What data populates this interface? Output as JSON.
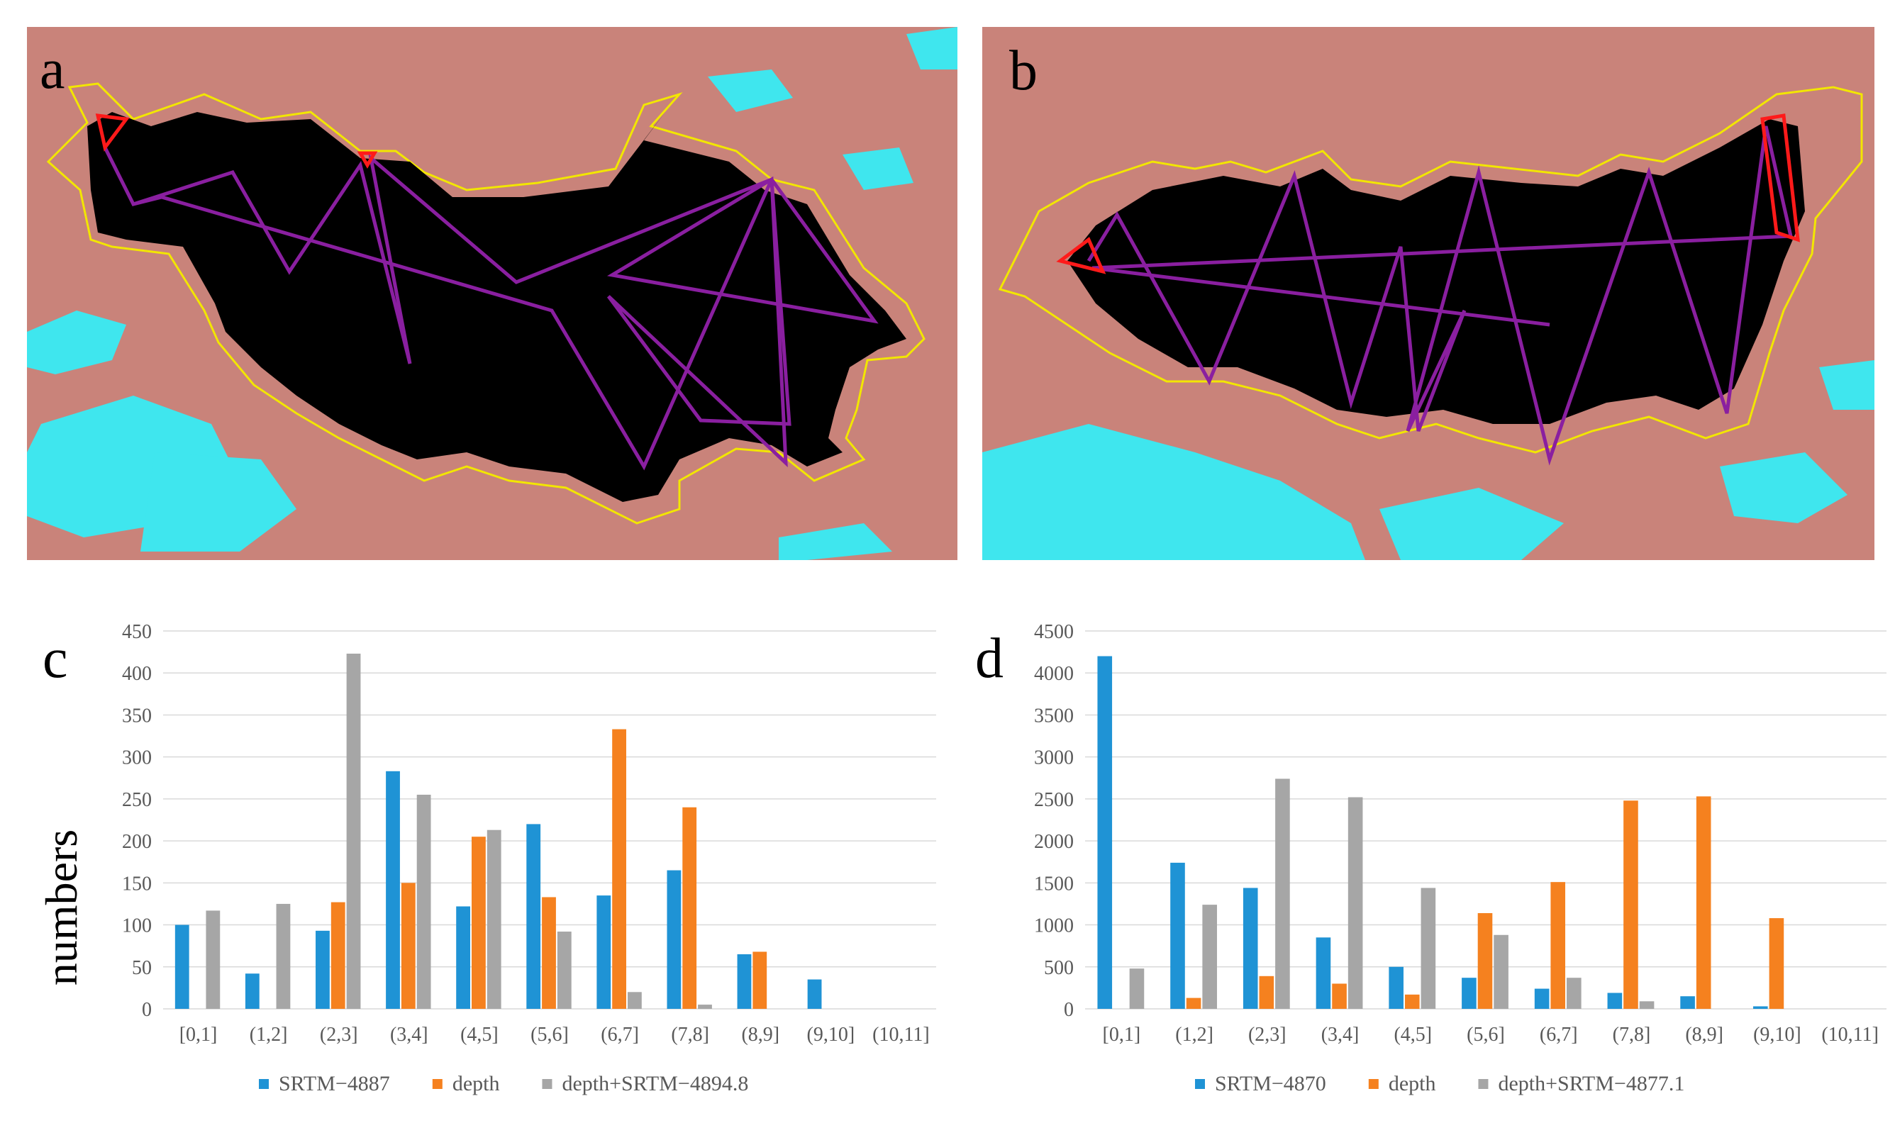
{
  "panels": {
    "a": {
      "letter": "a"
    },
    "b": {
      "letter": "b"
    }
  },
  "colors": {
    "terrain": "#c9837a",
    "lake": "#000000",
    "snow": "#3fe6ee",
    "boundary": "#f2e600",
    "track": "#8a1fa0",
    "track_end": "#ff1a1a"
  },
  "chart_data": [
    {
      "type": "bar",
      "panel_letter": "c",
      "ylabel": "numbers",
      "categories": [
        "[0,1]",
        "(1,2]",
        "(2,3]",
        "(3,4]",
        "(4,5]",
        "(5,6]",
        "(6,7]",
        "(7,8]",
        "(8,9]",
        "(9,10]",
        "(10,11]"
      ],
      "ylim": [
        0,
        450
      ],
      "yticks": [
        "0",
        "50",
        "100",
        "150",
        "200",
        "250",
        "300",
        "350",
        "400",
        "450"
      ],
      "grid": true,
      "legend_position": "bottom",
      "series": [
        {
          "name": "SRTM−4887",
          "color": "#1f93d5",
          "values": [
            100,
            42,
            93,
            283,
            122,
            220,
            135,
            165,
            65,
            35,
            0
          ]
        },
        {
          "name": "depth",
          "color": "#f5811f",
          "values": [
            0,
            0,
            127,
            150,
            205,
            133,
            333,
            240,
            68,
            0,
            0
          ]
        },
        {
          "name": "depth+SRTM−4894.8",
          "color": "#a6a6a6",
          "values": [
            117,
            125,
            423,
            255,
            213,
            92,
            20,
            5,
            0,
            0,
            0
          ]
        }
      ]
    },
    {
      "type": "bar",
      "panel_letter": "d",
      "ylabel": "",
      "categories": [
        "[0,1]",
        "(1,2]",
        "(2,3]",
        "(3,4]",
        "(4,5]",
        "(5,6]",
        "(6,7]",
        "(7,8]",
        "(8,9]",
        "(9,10]",
        "(10,11]"
      ],
      "ylim": [
        0,
        4500
      ],
      "yticks": [
        "0",
        "500",
        "1000",
        "1500",
        "2000",
        "2500",
        "3000",
        "3500",
        "4000",
        "4500"
      ],
      "grid": true,
      "legend_position": "bottom",
      "series": [
        {
          "name": "SRTM−4870",
          "color": "#1f93d5",
          "values": [
            4200,
            1740,
            1440,
            850,
            500,
            370,
            240,
            190,
            150,
            30,
            0
          ]
        },
        {
          "name": "depth",
          "color": "#f5811f",
          "values": [
            0,
            130,
            390,
            300,
            170,
            1140,
            1510,
            2480,
            2530,
            1080,
            0
          ]
        },
        {
          "name": "depth+SRTM−4877.1",
          "color": "#a6a6a6",
          "values": [
            480,
            1240,
            2740,
            2520,
            1440,
            880,
            370,
            90,
            0,
            0,
            0
          ]
        }
      ]
    }
  ]
}
